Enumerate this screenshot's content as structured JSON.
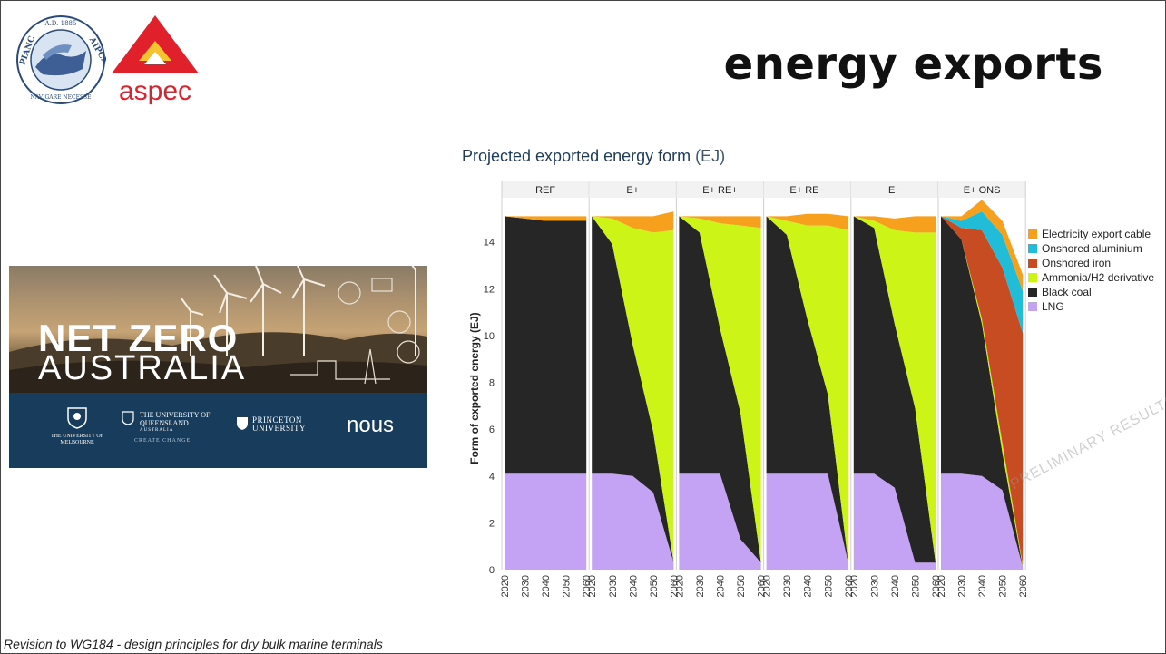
{
  "slide": {
    "title": "energy exports",
    "footer": "Revision to WG184 - design principles for dry bulk marine terminals"
  },
  "logos": {
    "pianc": {
      "top_text": "A.D. 1885",
      "left_text": "PIANC",
      "right_text": "AIPCN",
      "bottom_text": "NAVIGARE NECESSE"
    },
    "aspec": {
      "text": "aspec",
      "color": "#e0202b"
    }
  },
  "net_zero_banner": {
    "title_line1": "NET ZERO",
    "title_line2": "AUSTRALIA",
    "partners": [
      {
        "name": "THE UNIVERSITY OF MELBOURNE"
      },
      {
        "name": "THE UNIVERSITY OF QUEENSLAND",
        "sub": "AUSTRALIA",
        "tagline": "CREATE CHANGE"
      },
      {
        "name": "PRINCETON UNIVERSITY"
      },
      {
        "name": "nous"
      }
    ]
  },
  "chart_data": {
    "type": "area",
    "title": "Projected exported energy form",
    "title_unit": "(EJ)",
    "ylabel": "Form of exported energy (EJ)",
    "ylim": [
      0,
      15.5
    ],
    "yticks": [
      0,
      2,
      4,
      6,
      8,
      10,
      12,
      14
    ],
    "x": [
      2020,
      2030,
      2040,
      2050,
      2060
    ],
    "grid": false,
    "legend_position": "right",
    "watermark": "PRELIMINARY RESULTS ONLY - NOT FOR CITATION",
    "series_order": [
      "LNG",
      "Black coal",
      "Ammonia/H2 derivative",
      "Onshored iron",
      "Onshored aluminium",
      "Electricity export cable"
    ],
    "colors": {
      "LNG": "#c5a3f4",
      "Black coal": "#262626",
      "Ammonia/H2 derivative": "#ccf517",
      "Onshored iron": "#c84c22",
      "Onshored aluminium": "#20bcd8",
      "Electricity export cable": "#f7a01d"
    },
    "panels": [
      {
        "name": "REF",
        "series": {
          "LNG": [
            4.1,
            4.1,
            4.1,
            4.1,
            4.1
          ],
          "Black coal": [
            11.0,
            10.9,
            10.8,
            10.8,
            10.8
          ],
          "Ammonia/H2 derivative": [
            0,
            0,
            0,
            0,
            0
          ],
          "Onshored iron": [
            0,
            0,
            0,
            0,
            0
          ],
          "Onshored aluminium": [
            0,
            0,
            0,
            0,
            0
          ],
          "Electricity export cable": [
            0,
            0.1,
            0.2,
            0.2,
            0.2
          ]
        }
      },
      {
        "name": "E+",
        "series": {
          "LNG": [
            4.1,
            4.1,
            4.0,
            3.3,
            0.3
          ],
          "Black coal": [
            11.0,
            9.8,
            5.6,
            2.6,
            0
          ],
          "Ammonia/H2 derivative": [
            0,
            1.1,
            5.0,
            8.5,
            14.2
          ],
          "Onshored iron": [
            0,
            0,
            0,
            0,
            0
          ],
          "Onshored aluminium": [
            0,
            0,
            0,
            0,
            0
          ],
          "Electricity export cable": [
            0,
            0.1,
            0.5,
            0.7,
            0.8
          ]
        }
      },
      {
        "name": "E+ RE+",
        "series": {
          "LNG": [
            4.1,
            4.1,
            4.1,
            1.3,
            0.3
          ],
          "Black coal": [
            11.0,
            10.3,
            6.2,
            5.4,
            0
          ],
          "Ammonia/H2 derivative": [
            0,
            0.6,
            4.5,
            8.0,
            14.3
          ],
          "Onshored iron": [
            0,
            0,
            0,
            0,
            0
          ],
          "Onshored aluminium": [
            0,
            0,
            0,
            0,
            0
          ],
          "Electricity export cable": [
            0,
            0.1,
            0.3,
            0.4,
            0.5
          ]
        }
      },
      {
        "name": "E+ RE−",
        "series": {
          "LNG": [
            4.1,
            4.1,
            4.1,
            4.1,
            0.3
          ],
          "Black coal": [
            11.0,
            10.2,
            6.6,
            3.4,
            0
          ],
          "Ammonia/H2 derivative": [
            0,
            0.6,
            4.0,
            7.2,
            14.2
          ],
          "Onshored iron": [
            0,
            0,
            0,
            0,
            0
          ],
          "Onshored aluminium": [
            0,
            0,
            0,
            0,
            0
          ],
          "Electricity export cable": [
            0,
            0.2,
            0.5,
            0.5,
            0.6
          ]
        }
      },
      {
        "name": "E−",
        "series": {
          "LNG": [
            4.1,
            4.1,
            3.5,
            0.3,
            0.3
          ],
          "Black coal": [
            11.0,
            10.5,
            7.0,
            6.6,
            0
          ],
          "Ammonia/H2 derivative": [
            0,
            0.3,
            4.0,
            7.5,
            14.1
          ],
          "Onshored iron": [
            0,
            0,
            0,
            0,
            0
          ],
          "Onshored aluminium": [
            0,
            0,
            0,
            0,
            0
          ],
          "Electricity export cable": [
            0,
            0.2,
            0.5,
            0.7,
            0.7
          ]
        }
      },
      {
        "name": "E+ ONS",
        "series": {
          "LNG": [
            4.1,
            4.1,
            4.0,
            3.4,
            0.1
          ],
          "Black coal": [
            11.0,
            10.0,
            6.5,
            1.6,
            0
          ],
          "Ammonia/H2 derivative": [
            0,
            0,
            0.2,
            0.4,
            0.1
          ],
          "Onshored iron": [
            0,
            0.5,
            3.8,
            7.5,
            9.9
          ],
          "Onshored aluminium": [
            0,
            0.3,
            0.8,
            1.4,
            1.8
          ],
          "Electricity export cable": [
            0,
            0.2,
            0.5,
            0.6,
            0.7
          ]
        }
      }
    ]
  }
}
